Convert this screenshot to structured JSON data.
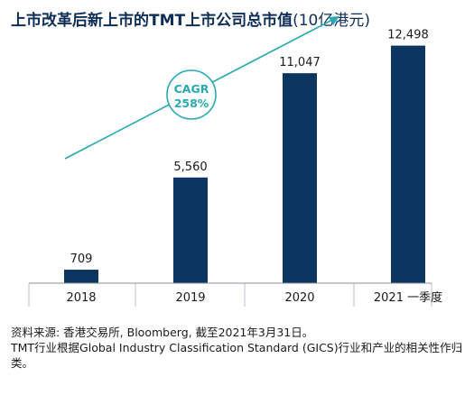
{
  "title": {
    "main": "上市改革后新上市的TMT上市公司总市值",
    "unit": "(10亿港元)"
  },
  "chart_data": {
    "type": "bar",
    "categories": [
      "2018",
      "2019",
      "2020",
      "2021 一季度"
    ],
    "values": [
      709,
      5560,
      11047,
      12498
    ],
    "value_labels": [
      "709",
      "5,560",
      "11,047",
      "12,498"
    ],
    "ylim": [
      0,
      13000
    ],
    "grid": false,
    "bar_color": "#0d3561",
    "annotation": {
      "line1": "CAGR",
      "line2": "258%",
      "color": "#2aa8b0"
    }
  },
  "notes": {
    "source": "资料来源: 香港交易所, Bloomberg, 截至2021年3月31日。",
    "definition": "TMT行业根据Global Industry Classification Standard (GICS)行业和产业的相关性作归类。"
  }
}
